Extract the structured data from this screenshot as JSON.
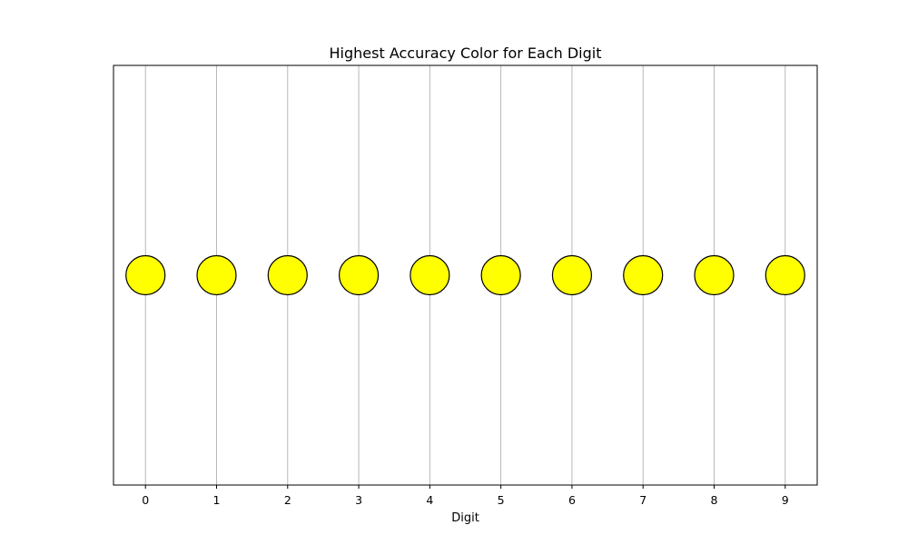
{
  "chart_data": {
    "type": "scatter",
    "title": "Highest Accuracy Color for Each Digit",
    "xlabel": "Digit",
    "ylabel": "",
    "x_ticks": [
      "0",
      "1",
      "2",
      "3",
      "4",
      "5",
      "6",
      "7",
      "8",
      "9"
    ],
    "xlim": [
      -0.45,
      9.45
    ],
    "ylim": [
      -1,
      1
    ],
    "grid": "vertical",
    "legend": "none",
    "points": [
      {
        "x": 0,
        "y": 0,
        "color": "#ffff00"
      },
      {
        "x": 1,
        "y": 0,
        "color": "#ffff00"
      },
      {
        "x": 2,
        "y": 0,
        "color": "#ffff00"
      },
      {
        "x": 3,
        "y": 0,
        "color": "#ffff00"
      },
      {
        "x": 4,
        "y": 0,
        "color": "#ffff00"
      },
      {
        "x": 5,
        "y": 0,
        "color": "#ffff00"
      },
      {
        "x": 6,
        "y": 0,
        "color": "#ffff00"
      },
      {
        "x": 7,
        "y": 0,
        "color": "#ffff00"
      },
      {
        "x": 8,
        "y": 0,
        "color": "#ffff00"
      },
      {
        "x": 9,
        "y": 0,
        "color": "#ffff00"
      }
    ],
    "colors": {
      "marker_edge": "#000000",
      "grid": "#b0b0b0",
      "axes": "#000000"
    }
  }
}
